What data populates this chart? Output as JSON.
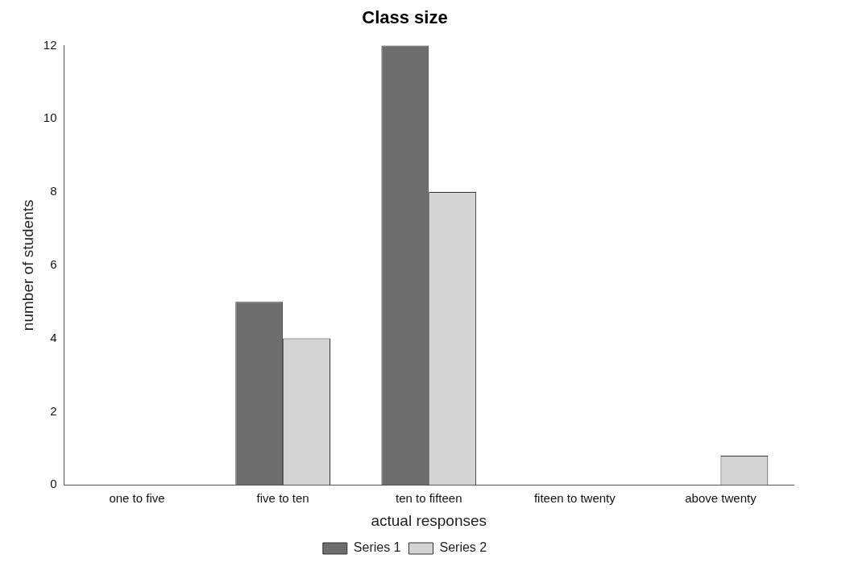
{
  "chart_data": {
    "type": "bar",
    "title": "Class size",
    "xlabel": "actual responses",
    "ylabel": "number of students",
    "categories": [
      "one to five",
      "five to ten",
      "ten to fifteen",
      "fiteen to twenty",
      "above twenty"
    ],
    "series": [
      {
        "name": "Series 1",
        "color": "#6e6e6e",
        "values": [
          0,
          5,
          12,
          0,
          0
        ]
      },
      {
        "name": "Series 2",
        "color": "#d4d4d4",
        "values": [
          0,
          4,
          8,
          0,
          0.8
        ]
      }
    ],
    "ylim": [
      0,
      12
    ],
    "yticks": [
      0,
      2,
      4,
      6,
      8,
      10,
      12
    ],
    "grid": false,
    "legend": "bottom"
  }
}
